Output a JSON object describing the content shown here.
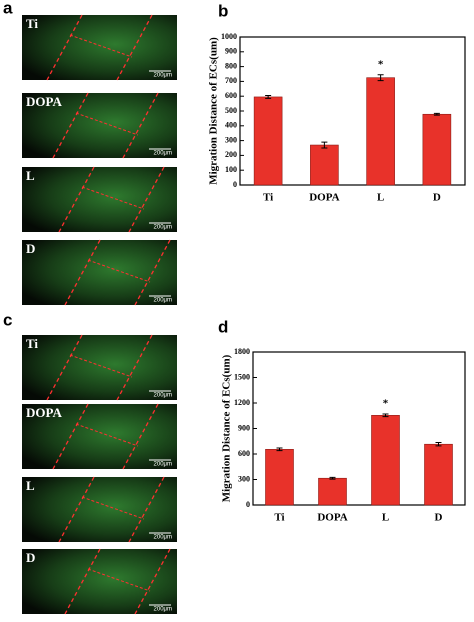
{
  "panels": [
    {
      "letter": "a",
      "images": [
        {
          "label": "Ti",
          "scale": "200μm"
        },
        {
          "label": "DOPA",
          "scale": "200μm"
        },
        {
          "label": "L",
          "scale": "200μm"
        },
        {
          "label": "D",
          "scale": "200μm"
        }
      ]
    },
    {
      "letter": "c",
      "images": [
        {
          "label": "Ti",
          "scale": "200μm"
        },
        {
          "label": "DOPA",
          "scale": "200μm"
        },
        {
          "label": "L",
          "scale": "200μm"
        },
        {
          "label": "D",
          "scale": "200μm"
        }
      ]
    }
  ],
  "chart_data": [
    {
      "type": "bar",
      "letter": "b",
      "ylabel": "Migration Distance of ECs(um)",
      "categories": [
        "Ti",
        "DOPA",
        "L",
        "D"
      ],
      "values": [
        595,
        270,
        725,
        478
      ],
      "errors": [
        10,
        20,
        20,
        6
      ],
      "color": "#e8322a",
      "annotation": "*",
      "ylim": [
        0,
        1000
      ],
      "yticks": [
        0,
        100,
        200,
        300,
        400,
        500,
        600,
        700,
        800,
        900,
        1000
      ]
    },
    {
      "type": "bar",
      "letter": "d",
      "ylabel": "Migration Distance of ECs(um)",
      "categories": [
        "Ti",
        "DOPA",
        "L",
        "D"
      ],
      "values": [
        655,
        315,
        1055,
        715
      ],
      "errors": [
        15,
        10,
        15,
        20
      ],
      "color": "#e8322a",
      "annotation": "*",
      "ylim": [
        0,
        1800
      ],
      "yticks": [
        0,
        300,
        600,
        900,
        1200,
        1500,
        1800
      ]
    }
  ]
}
